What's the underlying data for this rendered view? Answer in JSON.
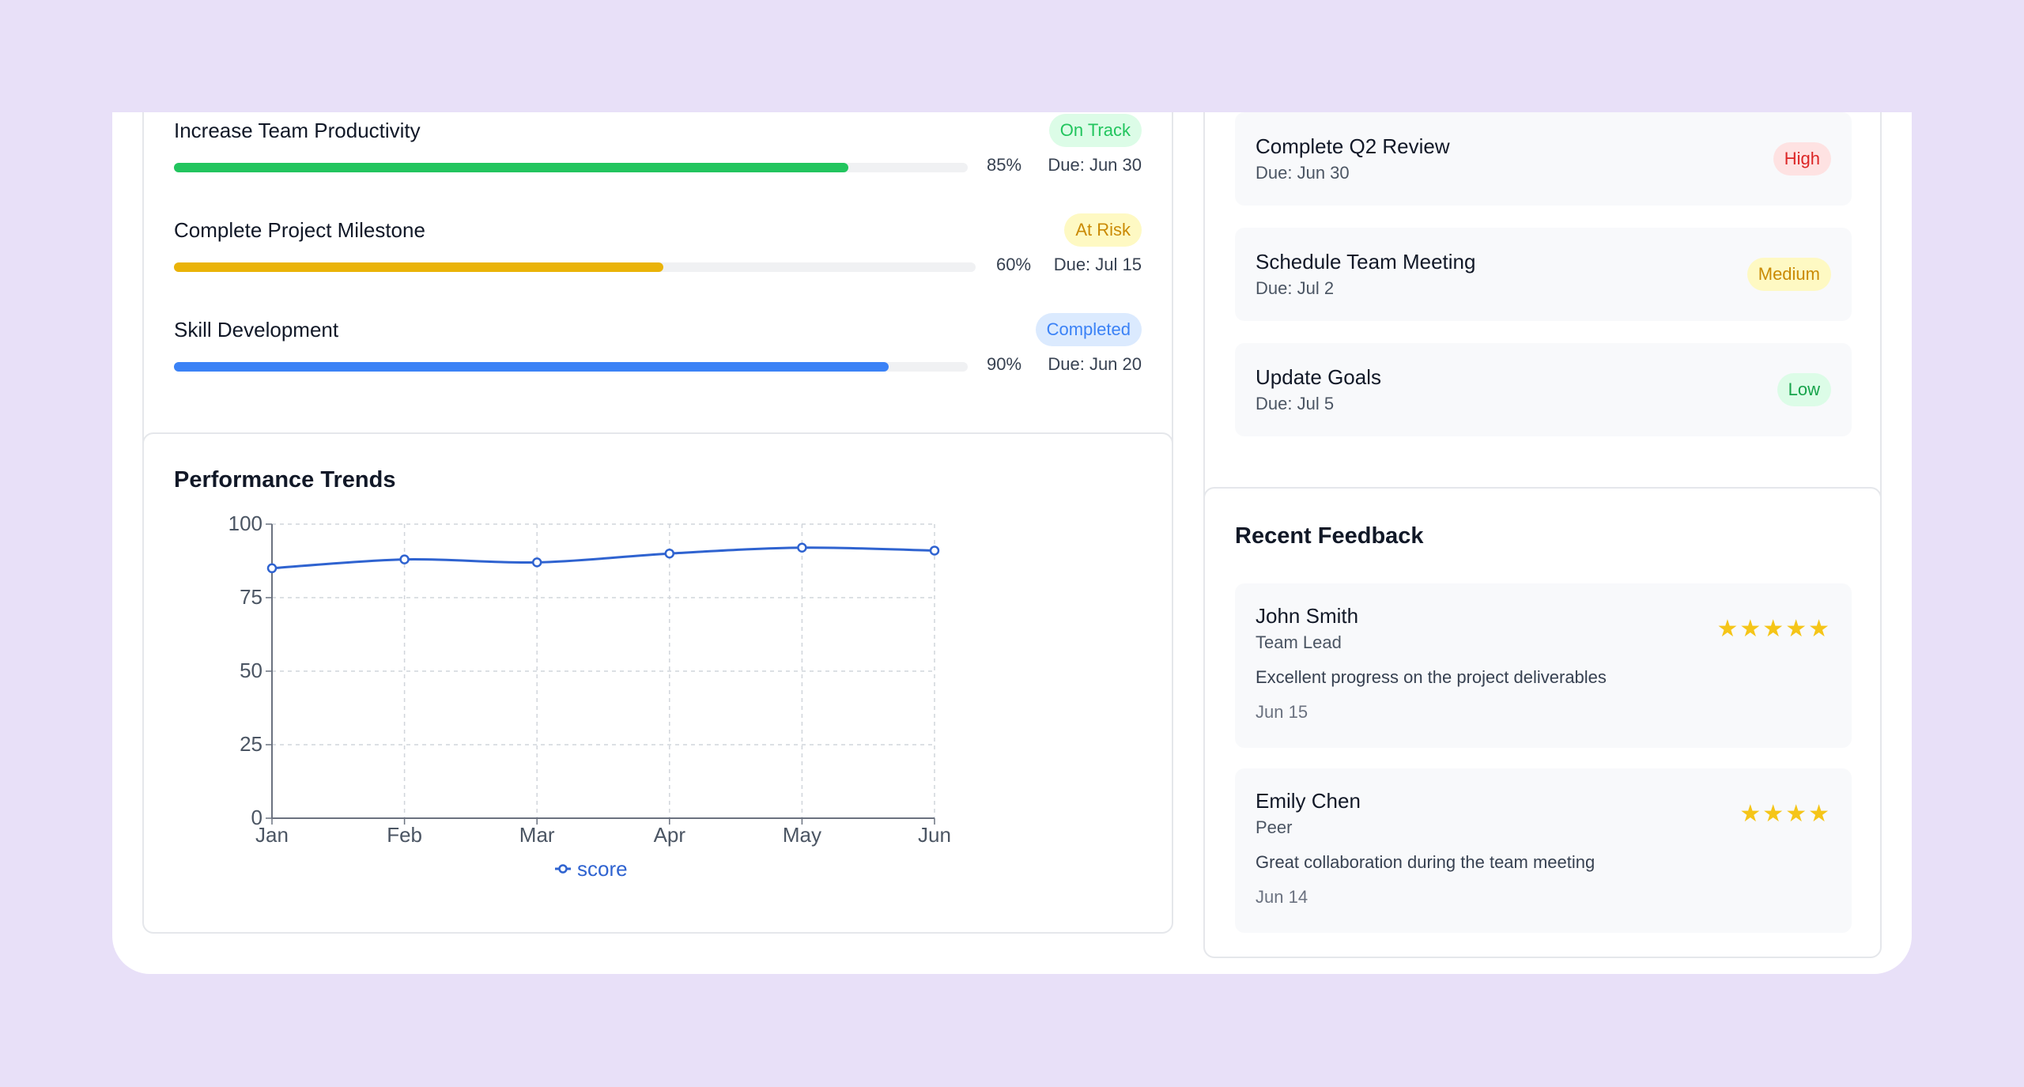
{
  "colors": {
    "on_track": "#22c55e",
    "at_risk": "#eab308",
    "completed": "#3b82f6",
    "high": "#dc2626",
    "medium": "#ca8a04",
    "low": "#16a34a",
    "chart_line": "#2f63d0",
    "star": "#f5c518"
  },
  "goals": [
    {
      "title": "Increase Team Productivity",
      "status": "On Track",
      "progress": 85,
      "progress_label": "85%",
      "due": "Due: Jun 30"
    },
    {
      "title": "Complete Project Milestone",
      "status": "At Risk",
      "progress": 60,
      "progress_label": "60%",
      "due": "Due: Jul 15"
    },
    {
      "title": "Skill Development",
      "status": "Completed",
      "progress": 90,
      "progress_label": "90%",
      "due": "Due: Jun 20"
    }
  ],
  "performance": {
    "title": "Performance Trends"
  },
  "chart_data": {
    "type": "line",
    "title": "",
    "x": [
      "Jan",
      "Feb",
      "Mar",
      "Apr",
      "May",
      "Jun"
    ],
    "series": [
      {
        "name": "score",
        "values": [
          85,
          88,
          87,
          90,
          92,
          91
        ]
      }
    ],
    "ylim": [
      0,
      100
    ],
    "yticks": [
      "0",
      "25",
      "50",
      "75",
      "100"
    ],
    "grid": true,
    "legend": "bottom"
  },
  "tasks": [
    {
      "title": "Complete Q2 Review",
      "due": "Due: Jun 30",
      "priority": "High"
    },
    {
      "title": "Schedule Team Meeting",
      "due": "Due: Jul 2",
      "priority": "Medium"
    },
    {
      "title": "Update Goals",
      "due": "Due: Jul 5",
      "priority": "Low"
    }
  ],
  "feedback": {
    "title": "Recent Feedback",
    "items": [
      {
        "name": "John Smith",
        "role": "Team Lead",
        "text": "Excellent progress on the project deliverables",
        "date": "Jun 15",
        "rating": 5
      },
      {
        "name": "Emily Chen",
        "role": "Peer",
        "text": "Great collaboration during the team meeting",
        "date": "Jun 14",
        "rating": 4
      }
    ]
  }
}
